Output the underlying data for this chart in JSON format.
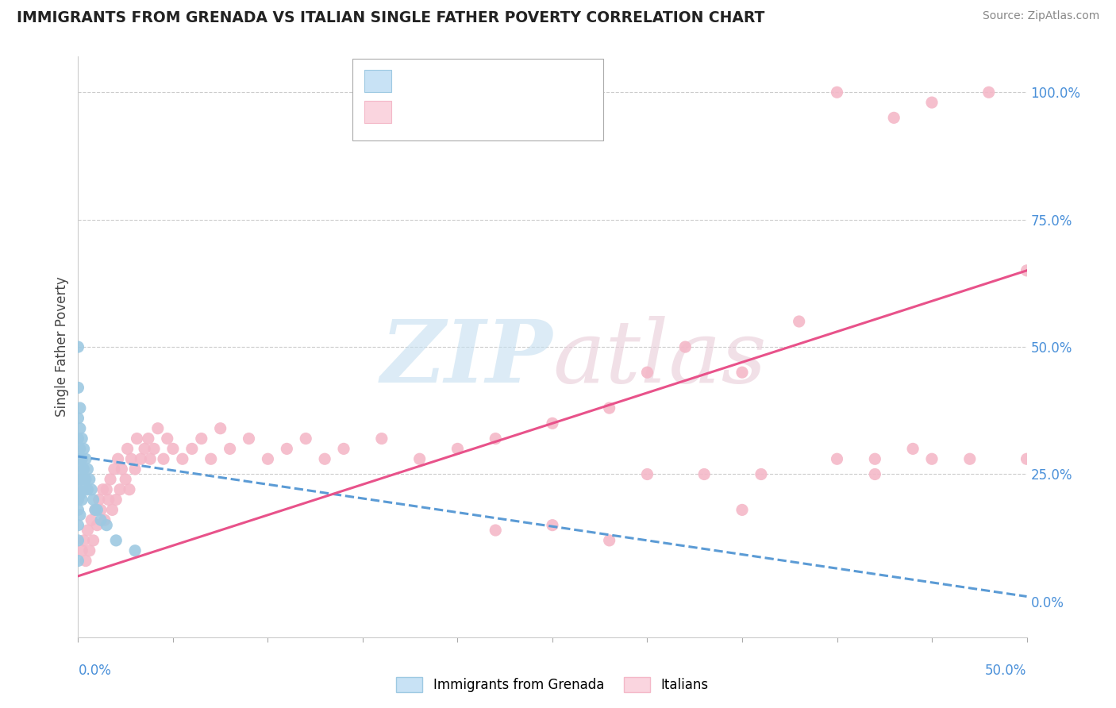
{
  "title": "IMMIGRANTS FROM GRENADA VS ITALIAN SINGLE FATHER POVERTY CORRELATION CHART",
  "source": "Source: ZipAtlas.com",
  "ylabel": "Single Father Poverty",
  "right_ytick_labels": [
    "0.0%",
    "25.0%",
    "50.0%",
    "75.0%",
    "100.0%"
  ],
  "right_yticks": [
    0.0,
    0.25,
    0.5,
    0.75,
    1.0
  ],
  "xlim": [
    0.0,
    0.5
  ],
  "ylim": [
    -0.07,
    1.07
  ],
  "plot_ylim": [
    -0.07,
    1.07
  ],
  "grenada_color": "#9ec9e2",
  "grenada_line_color": "#5b9bd5",
  "italian_color": "#f4b8c8",
  "italian_line_color": "#e8528a",
  "background_color": "#ffffff",
  "grenada_trendline_x": [
    0.0,
    0.5
  ],
  "grenada_trendline_y": [
    0.285,
    0.01
  ],
  "italian_trendline_x": [
    0.0,
    0.5
  ],
  "italian_trendline_y": [
    0.05,
    0.65
  ],
  "grenada_x": [
    0.0,
    0.0,
    0.0,
    0.0,
    0.0,
    0.0,
    0.0,
    0.0,
    0.0,
    0.0,
    0.0,
    0.0,
    0.001,
    0.001,
    0.001,
    0.001,
    0.001,
    0.001,
    0.001,
    0.002,
    0.002,
    0.002,
    0.002,
    0.003,
    0.003,
    0.003,
    0.004,
    0.004,
    0.005,
    0.005,
    0.006,
    0.007,
    0.008,
    0.009,
    0.01,
    0.012,
    0.015,
    0.02,
    0.03
  ],
  "grenada_y": [
    0.5,
    0.42,
    0.36,
    0.32,
    0.28,
    0.25,
    0.22,
    0.2,
    0.18,
    0.15,
    0.12,
    0.08,
    0.38,
    0.34,
    0.3,
    0.27,
    0.24,
    0.21,
    0.17,
    0.32,
    0.28,
    0.24,
    0.2,
    0.3,
    0.26,
    0.22,
    0.28,
    0.24,
    0.26,
    0.22,
    0.24,
    0.22,
    0.2,
    0.18,
    0.18,
    0.16,
    0.15,
    0.12,
    0.1
  ],
  "italian_x": [
    0.002,
    0.003,
    0.004,
    0.005,
    0.006,
    0.007,
    0.008,
    0.009,
    0.01,
    0.011,
    0.012,
    0.013,
    0.014,
    0.015,
    0.016,
    0.017,
    0.018,
    0.019,
    0.02,
    0.021,
    0.022,
    0.023,
    0.025,
    0.026,
    0.027,
    0.028,
    0.03,
    0.031,
    0.033,
    0.035,
    0.037,
    0.038,
    0.04,
    0.042,
    0.045,
    0.047,
    0.05,
    0.055,
    0.06,
    0.065,
    0.07,
    0.075,
    0.08,
    0.09,
    0.1,
    0.11,
    0.12,
    0.13,
    0.14,
    0.16,
    0.18,
    0.2,
    0.22,
    0.25,
    0.28,
    0.3,
    0.32,
    0.35,
    0.38,
    0.4,
    0.4,
    0.42,
    0.43,
    0.45,
    0.45,
    0.47,
    0.48,
    0.5,
    0.5,
    0.3,
    0.33,
    0.36,
    0.42,
    0.44,
    0.22,
    0.25,
    0.28,
    0.35
  ],
  "italian_y": [
    0.1,
    0.12,
    0.08,
    0.14,
    0.1,
    0.16,
    0.12,
    0.18,
    0.15,
    0.2,
    0.18,
    0.22,
    0.16,
    0.22,
    0.2,
    0.24,
    0.18,
    0.26,
    0.2,
    0.28,
    0.22,
    0.26,
    0.24,
    0.3,
    0.22,
    0.28,
    0.26,
    0.32,
    0.28,
    0.3,
    0.32,
    0.28,
    0.3,
    0.34,
    0.28,
    0.32,
    0.3,
    0.28,
    0.3,
    0.32,
    0.28,
    0.34,
    0.3,
    0.32,
    0.28,
    0.3,
    0.32,
    0.28,
    0.3,
    0.32,
    0.28,
    0.3,
    0.32,
    0.35,
    0.38,
    0.45,
    0.5,
    0.45,
    0.55,
    0.28,
    1.0,
    0.28,
    0.95,
    0.28,
    0.98,
    0.28,
    1.0,
    0.28,
    0.65,
    0.25,
    0.25,
    0.25,
    0.25,
    0.3,
    0.14,
    0.15,
    0.12,
    0.18
  ]
}
